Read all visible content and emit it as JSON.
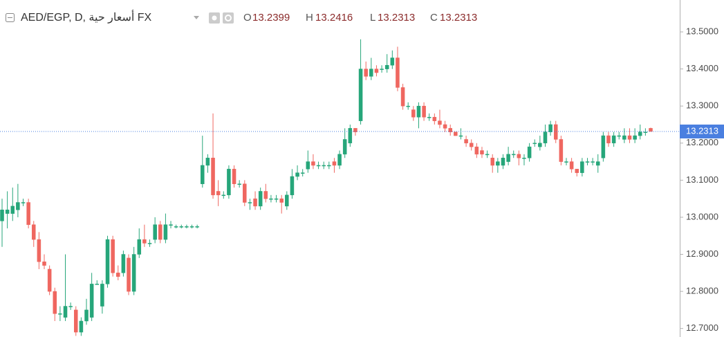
{
  "chart_data": {
    "type": "candlestick",
    "title": "AED/EGP, D, أسعار حية FX",
    "ohlc_labels": [
      "O",
      "H",
      "L",
      "C"
    ],
    "up_color": "#26a67a",
    "down_color": "#ef6760",
    "last_price_color": "#4a7fe0",
    "ylim": [
      12.677,
      13.586
    ],
    "yticks": [
      {
        "value": 12.7,
        "label": "12.7000"
      },
      {
        "value": 12.8,
        "label": "12.8000"
      },
      {
        "value": 12.9,
        "label": "12.9000"
      },
      {
        "value": 13.0,
        "label": "13.0000"
      },
      {
        "value": 13.1,
        "label": "13.1000"
      },
      {
        "value": 13.2,
        "label": "13.2000"
      },
      {
        "value": 13.3,
        "label": "13.3000"
      },
      {
        "value": 13.4,
        "label": "13.4000"
      },
      {
        "value": 13.5,
        "label": "13.5000"
      }
    ],
    "open": [
      12.99,
      13.01,
      13.01,
      13.02,
      13.04,
      13.04,
      12.98,
      12.94,
      12.88,
      12.86,
      12.8,
      12.74,
      12.73,
      12.76,
      12.75,
      12.69,
      12.72,
      12.73,
      12.82,
      12.76,
      12.82,
      12.94,
      12.85,
      12.85,
      12.89,
      12.8,
      12.9,
      12.94,
      12.93,
      12.94,
      12.98,
      12.94,
      12.98,
      12.975,
      12.975,
      12.975,
      12.975,
      12.975,
      13.09,
      13.14,
      13.16,
      13.07,
      13.06,
      13.06,
      13.13,
      13.09,
      13.09,
      13.04,
      13.05,
      13.03,
      13.07,
      13.05,
      13.05,
      13.05,
      13.03,
      13.06,
      13.11,
      13.12,
      13.13,
      13.15,
      13.14,
      13.14,
      13.14,
      13.15,
      13.14,
      13.17,
      13.2,
      13.24,
      13.26,
      13.4,
      13.38,
      13.4,
      13.4,
      13.4,
      13.41,
      13.43,
      13.35,
      13.3,
      13.29,
      13.27,
      13.3,
      13.27,
      13.27,
      13.26,
      13.25,
      13.24,
      13.23,
      13.22,
      13.21,
      13.2,
      13.19,
      13.18,
      13.17,
      13.16,
      13.14,
      13.14,
      13.15,
      13.17,
      13.17,
      13.16,
      13.16,
      13.2,
      13.19,
      13.2,
      13.23,
      13.25,
      13.21,
      13.15,
      13.15,
      13.13,
      13.12,
      13.15,
      13.15,
      13.14,
      13.16,
      13.22,
      13.2,
      13.22,
      13.21,
      13.22,
      13.21,
      13.22,
      13.23,
      13.2399
    ],
    "high": [
      13.05,
      13.07,
      13.08,
      13.09,
      13.05,
      13.05,
      12.99,
      12.96,
      12.9,
      12.87,
      12.81,
      12.76,
      12.9,
      12.77,
      12.76,
      12.73,
      12.78,
      12.85,
      12.83,
      12.83,
      12.95,
      12.95,
      12.87,
      12.91,
      12.9,
      12.92,
      12.97,
      12.98,
      12.94,
      13.0,
      12.99,
      13.01,
      12.99,
      12.98,
      12.98,
      12.98,
      12.98,
      12.98,
      13.22,
      13.17,
      13.28,
      13.1,
      13.07,
      13.14,
      13.14,
      13.1,
      13.1,
      13.05,
      13.07,
      13.08,
      13.09,
      13.06,
      13.06,
      13.06,
      13.07,
      13.13,
      13.14,
      13.13,
      13.18,
      13.17,
      13.15,
      13.15,
      13.15,
      13.16,
      13.18,
      13.24,
      13.25,
      13.24,
      13.48,
      13.42,
      13.43,
      13.41,
      13.41,
      13.44,
      13.45,
      13.46,
      13.36,
      13.31,
      13.3,
      13.31,
      13.31,
      13.28,
      13.28,
      13.29,
      13.26,
      13.25,
      13.23,
      13.24,
      13.22,
      13.21,
      13.2,
      13.19,
      13.18,
      13.17,
      13.16,
      13.17,
      13.19,
      13.18,
      13.18,
      13.17,
      13.2,
      13.21,
      13.22,
      13.25,
      13.26,
      13.26,
      13.22,
      13.16,
      13.16,
      13.13,
      13.16,
      13.16,
      13.16,
      13.17,
      13.23,
      13.23,
      13.23,
      13.23,
      13.24,
      13.24,
      13.24,
      13.25,
      13.24,
      13.2416
    ],
    "low": [
      12.92,
      12.97,
      12.99,
      13.0,
      13.03,
      12.97,
      12.92,
      12.86,
      12.86,
      12.79,
      12.72,
      12.72,
      12.72,
      12.75,
      12.68,
      12.68,
      12.71,
      12.72,
      12.82,
      12.74,
      12.81,
      12.84,
      12.83,
      12.84,
      12.79,
      12.79,
      12.89,
      12.92,
      12.92,
      12.93,
      12.93,
      12.93,
      12.97,
      12.97,
      12.97,
      12.97,
      12.97,
      12.97,
      13.08,
      13.12,
      13.05,
      13.03,
      13.05,
      13.05,
      13.08,
      13.08,
      13.03,
      13.02,
      13.02,
      13.02,
      13.04,
      13.04,
      13.04,
      13.01,
      13.02,
      13.05,
      13.1,
      13.11,
      13.12,
      13.13,
      13.13,
      13.13,
      13.13,
      13.12,
      13.13,
      13.16,
      13.19,
      13.22,
      13.25,
      13.37,
      13.37,
      13.38,
      13.39,
      13.39,
      13.4,
      13.34,
      13.29,
      13.29,
      13.26,
      13.24,
      13.26,
      13.26,
      13.25,
      13.24,
      13.23,
      13.22,
      13.22,
      13.21,
      13.19,
      13.18,
      13.16,
      13.16,
      13.16,
      13.12,
      13.12,
      13.13,
      13.14,
      13.16,
      13.14,
      13.14,
      13.15,
      13.19,
      13.18,
      13.19,
      13.22,
      13.2,
      13.14,
      13.14,
      13.12,
      13.11,
      13.11,
      13.14,
      13.14,
      13.12,
      13.15,
      13.19,
      13.19,
      13.21,
      13.2,
      13.2,
      13.2,
      13.21,
      13.22,
      13.2313
    ],
    "close": [
      13.02,
      13.02,
      13.03,
      13.04,
      13.04,
      12.98,
      12.94,
      12.88,
      12.87,
      12.8,
      12.74,
      12.74,
      12.76,
      12.76,
      12.69,
      12.72,
      12.75,
      12.82,
      12.82,
      12.82,
      12.94,
      12.85,
      12.84,
      12.9,
      12.8,
      12.9,
      12.94,
      12.93,
      12.93,
      12.98,
      12.94,
      12.98,
      12.98,
      12.975,
      12.975,
      12.975,
      12.975,
      12.975,
      13.14,
      13.16,
      13.06,
      13.06,
      13.06,
      13.13,
      13.09,
      13.09,
      13.04,
      13.04,
      13.03,
      13.07,
      13.05,
      13.05,
      13.05,
      13.04,
      13.06,
      13.11,
      13.12,
      13.12,
      13.15,
      13.14,
      13.14,
      13.14,
      13.14,
      13.14,
      13.17,
      13.21,
      13.24,
      13.23,
      13.4,
      13.38,
      13.4,
      13.39,
      13.4,
      13.41,
      13.43,
      13.35,
      13.3,
      13.3,
      13.27,
      13.3,
      13.27,
      13.27,
      13.26,
      13.25,
      13.24,
      13.23,
      13.22,
      13.22,
      13.2,
      13.19,
      13.17,
      13.17,
      13.17,
      13.14,
      13.15,
      13.16,
      13.17,
      13.17,
      13.16,
      13.16,
      13.19,
      13.2,
      13.2,
      13.23,
      13.25,
      13.21,
      13.15,
      13.15,
      13.13,
      13.12,
      13.15,
      13.15,
      13.15,
      13.15,
      13.22,
      13.2,
      13.22,
      13.22,
      13.22,
      13.21,
      13.22,
      13.23,
      13.23,
      13.2313
    ]
  }
}
